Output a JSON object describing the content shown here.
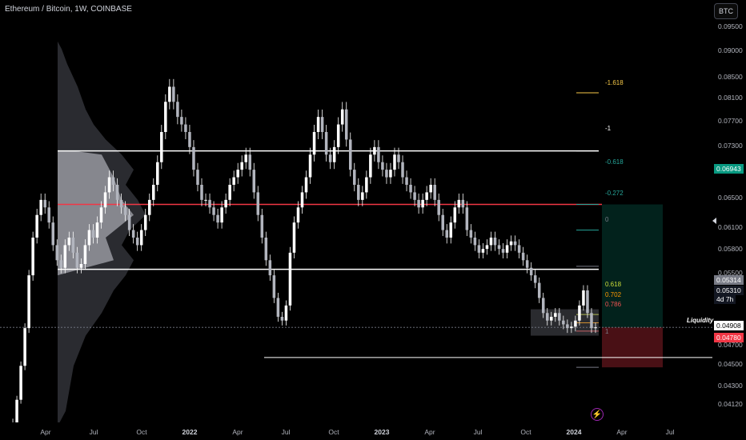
{
  "header": {
    "title": "Ethereum / Bitcoin, 1W, COINBASE",
    "currency_button": "BTC"
  },
  "price_axis": {
    "ticks": [
      "0.09500",
      "0.09000",
      "0.08500",
      "0.08100",
      "0.07700",
      "0.07300",
      "0.06500",
      "0.06100",
      "0.05800",
      "0.05500",
      "0.04700",
      "0.04500",
      "0.04300",
      "0.04120"
    ],
    "badges": [
      {
        "id": "current",
        "text": "0.06943",
        "color": "#089981"
      },
      {
        "id": "last",
        "text": "0.05314",
        "color": "#787b86"
      },
      {
        "id": "last2",
        "text": "0.05310",
        "color": "#131722"
      },
      {
        "id": "countdown",
        "text": "4d 7h",
        "color": "#131722"
      },
      {
        "id": "liq",
        "text": "0.04908",
        "color": "#ffffff"
      },
      {
        "id": "stop",
        "text": "0.04780",
        "color": "#f23645"
      }
    ]
  },
  "time_axis": {
    "ticks": [
      "Apr",
      "Jul",
      "Oct",
      "2022",
      "Apr",
      "Jul",
      "Oct",
      "2023",
      "Apr",
      "Jul",
      "Oct",
      "2024",
      "Apr",
      "Jul"
    ]
  },
  "fib_levels": [
    {
      "label": "-1.618",
      "color": "#f7c948"
    },
    {
      "label": "-1",
      "color": "#ffffff"
    },
    {
      "label": "-0.618",
      "color": "#26a69a"
    },
    {
      "label": "-0.272",
      "color": "#26a69a"
    },
    {
      "label": "0",
      "color": "#787b86"
    },
    {
      "label": "0.618",
      "color": "#cddc39"
    },
    {
      "label": "0.702",
      "color": "#ff9800"
    },
    {
      "label": "0.786",
      "color": "#ef5350"
    },
    {
      "label": "1",
      "color": "#787b86"
    }
  ],
  "annotations": {
    "liquidity": "Liquidity"
  },
  "icons": {
    "bolt": "lightning-bolt-icon"
  },
  "chart_data": {
    "type": "candlestick",
    "symbol": "Ethereum / Bitcoin",
    "interval": "1W",
    "exchange": "COINBASE",
    "ylim": [
      0.0405,
      0.0965
    ],
    "horizontal_levels": [
      0.0765,
      0.0694,
      0.0608,
      0.0491
    ],
    "position": {
      "entry": 0.0531,
      "target": 0.0694,
      "stop": 0.0478
    },
    "grid": false,
    "closes": [
      0.037,
      0.039,
      0.0405,
      0.0435,
      0.048,
      0.053,
      0.06,
      0.065,
      0.068,
      0.07,
      0.069,
      0.067,
      0.064,
      0.062,
      0.061,
      0.064,
      0.065,
      0.063,
      0.061,
      0.0615,
      0.064,
      0.066,
      0.065,
      0.067,
      0.069,
      0.071,
      0.073,
      0.072,
      0.07,
      0.069,
      0.068,
      0.066,
      0.065,
      0.064,
      0.066,
      0.068,
      0.07,
      0.072,
      0.075,
      0.079,
      0.083,
      0.085,
      0.083,
      0.081,
      0.08,
      0.079,
      0.077,
      0.074,
      0.072,
      0.07,
      0.07,
      0.069,
      0.068,
      0.067,
      0.069,
      0.07,
      0.072,
      0.073,
      0.074,
      0.075,
      0.076,
      0.074,
      0.071,
      0.068,
      0.065,
      0.062,
      0.06,
      0.057,
      0.0545,
      0.054,
      0.056,
      0.063,
      0.067,
      0.069,
      0.071,
      0.073,
      0.076,
      0.079,
      0.081,
      0.079,
      0.076,
      0.075,
      0.077,
      0.08,
      0.082,
      0.078,
      0.074,
      0.072,
      0.07,
      0.071,
      0.073,
      0.076,
      0.077,
      0.075,
      0.074,
      0.073,
      0.074,
      0.076,
      0.075,
      0.073,
      0.072,
      0.071,
      0.07,
      0.069,
      0.07,
      0.071,
      0.072,
      0.07,
      0.068,
      0.066,
      0.065,
      0.067,
      0.069,
      0.07,
      0.069,
      0.066,
      0.065,
      0.064,
      0.063,
      0.0635,
      0.064,
      0.065,
      0.064,
      0.0635,
      0.063,
      0.064,
      0.0645,
      0.064,
      0.063,
      0.062,
      0.061,
      0.06,
      0.059,
      0.057,
      0.055,
      0.054,
      0.0545,
      0.055,
      0.054,
      0.0535,
      0.053,
      0.0532,
      0.054,
      0.056,
      0.058,
      0.055,
      0.053,
      0.0531
    ]
  }
}
